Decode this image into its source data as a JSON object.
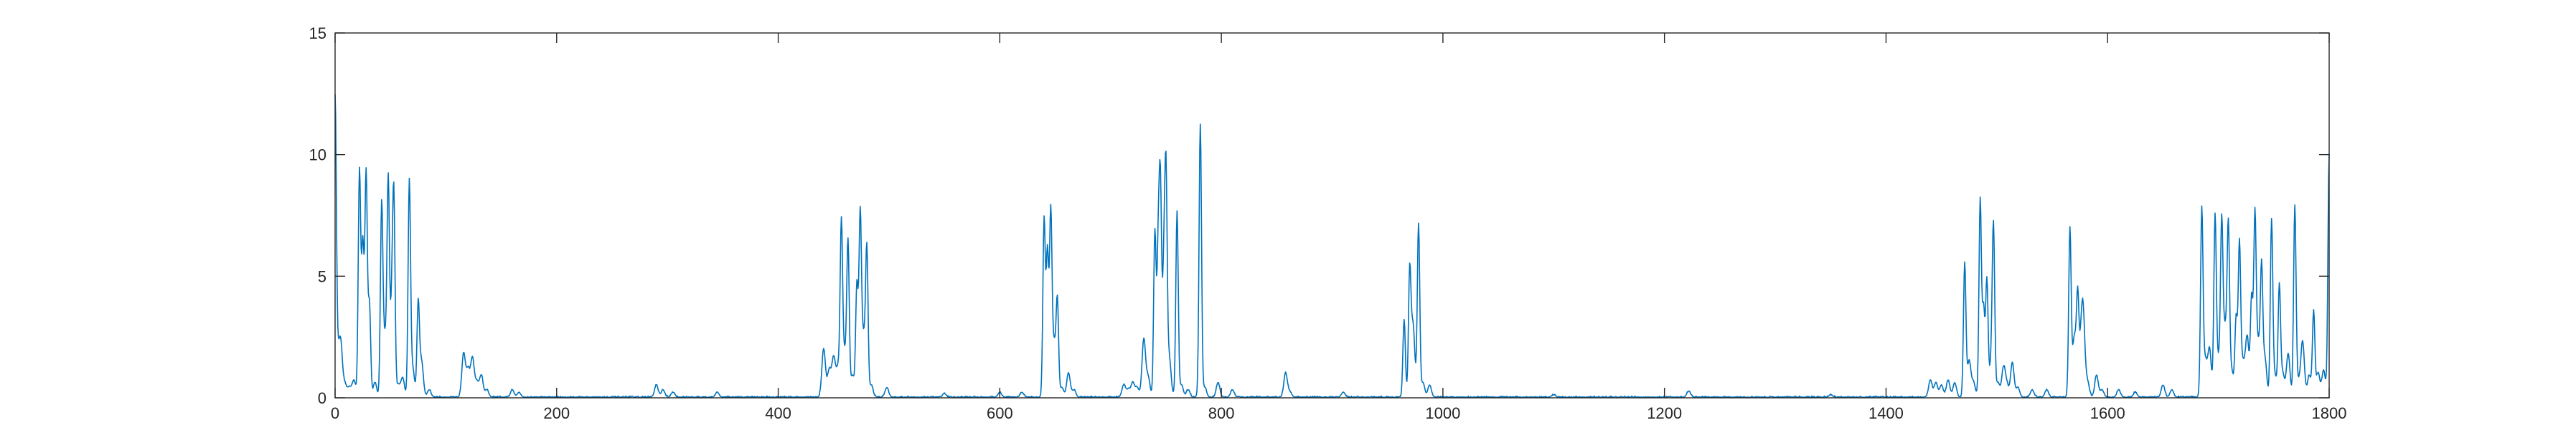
{
  "chart_data": {
    "type": "line",
    "title": "",
    "xlabel": "",
    "ylabel": "",
    "xlim": [
      0,
      1800
    ],
    "ylim": [
      0,
      15
    ],
    "grid": false,
    "box": true,
    "x_ticks": [
      0,
      200,
      400,
      600,
      800,
      1000,
      1200,
      1400,
      1600,
      1800
    ],
    "x_tick_labels": [
      "0",
      "200",
      "400",
      "600",
      "800",
      "1000",
      "1200",
      "1400",
      "1600",
      "1800"
    ],
    "y_ticks": [
      0,
      5,
      10,
      15
    ],
    "y_tick_labels": [
      "0",
      "5",
      "10",
      "15"
    ],
    "colors": {
      "series": "#0072BD",
      "axes": "#262626",
      "background": "#ffffff"
    },
    "series": [
      {
        "peaks": [
          [
            0,
            11.8
          ],
          [
            2,
            1.4
          ],
          [
            5,
            2.2
          ],
          [
            9,
            0.5
          ],
          [
            13,
            0.4
          ],
          [
            17,
            0.7
          ],
          [
            22,
            9.3
          ],
          [
            25,
            6.2
          ],
          [
            28,
            9.2
          ],
          [
            31,
            3.8
          ],
          [
            36,
            0.6
          ],
          [
            42,
            7.7
          ],
          [
            45,
            2.4
          ],
          [
            48,
            8.7
          ],
          [
            51,
            3.2
          ],
          [
            53,
            8.2
          ],
          [
            57,
            0.5
          ],
          [
            61,
            0.8
          ],
          [
            67,
            8.8
          ],
          [
            70,
            1.2
          ],
          [
            75,
            3.8
          ],
          [
            78,
            1.5
          ],
          [
            85,
            0.3
          ],
          [
            116,
            1.8
          ],
          [
            120,
            1.1
          ],
          [
            124,
            1.6
          ],
          [
            128,
            0.6
          ],
          [
            132,
            0.9
          ],
          [
            137,
            0.3
          ],
          [
            160,
            0.3
          ],
          [
            166,
            0.2
          ],
          [
            290,
            0.5
          ],
          [
            296,
            0.3
          ],
          [
            305,
            0.2
          ],
          [
            345,
            0.2
          ],
          [
            441,
            2.0
          ],
          [
            446,
            1.1
          ],
          [
            450,
            1.6
          ],
          [
            454,
            1.2
          ],
          [
            457,
            6.9
          ],
          [
            460,
            1.8
          ],
          [
            463,
            6.2
          ],
          [
            467,
            0.9
          ],
          [
            471,
            4.6
          ],
          [
            474,
            7.3
          ],
          [
            477,
            2.5
          ],
          [
            480,
            5.9
          ],
          [
            484,
            0.5
          ],
          [
            498,
            0.4
          ],
          [
            550,
            0.15
          ],
          [
            600,
            0.2
          ],
          [
            620,
            0.2
          ],
          [
            640,
            7.3
          ],
          [
            643,
            5.9
          ],
          [
            646,
            7.4
          ],
          [
            649,
            2.2
          ],
          [
            652,
            3.8
          ],
          [
            656,
            0.4
          ],
          [
            662,
            1.0
          ],
          [
            667,
            0.3
          ],
          [
            712,
            0.5
          ],
          [
            716,
            0.3
          ],
          [
            720,
            0.6
          ],
          [
            724,
            0.4
          ],
          [
            730,
            2.4
          ],
          [
            734,
            0.8
          ],
          [
            740,
            6.8
          ],
          [
            743,
            5.7
          ],
          [
            745,
            8.3
          ],
          [
            748,
            4.7
          ],
          [
            750,
            8.9
          ],
          [
            753,
            1.6
          ],
          [
            760,
            7.6
          ],
          [
            764,
            0.5
          ],
          [
            770,
            0.3
          ],
          [
            781,
            11.2
          ],
          [
            785,
            0.4
          ],
          [
            797,
            0.6
          ],
          [
            810,
            0.3
          ],
          [
            858,
            1.0
          ],
          [
            862,
            0.2
          ],
          [
            910,
            0.2
          ],
          [
            965,
            3.2
          ],
          [
            970,
            5.0
          ],
          [
            973,
            3.0
          ],
          [
            978,
            7.1
          ],
          [
            982,
            0.6
          ],
          [
            988,
            0.5
          ],
          [
            1100,
            0.1
          ],
          [
            1222,
            0.25
          ],
          [
            1350,
            0.1
          ],
          [
            1440,
            0.7
          ],
          [
            1445,
            0.6
          ],
          [
            1450,
            0.5
          ],
          [
            1456,
            0.7
          ],
          [
            1462,
            0.6
          ],
          [
            1471,
            5.5
          ],
          [
            1475,
            1.5
          ],
          [
            1479,
            0.6
          ],
          [
            1485,
            8.1
          ],
          [
            1488,
            3.6
          ],
          [
            1491,
            4.8
          ],
          [
            1495,
            1.4
          ],
          [
            1497,
            6.6
          ],
          [
            1501,
            0.6
          ],
          [
            1506,
            1.2
          ],
          [
            1509,
            0.5
          ],
          [
            1514,
            1.4
          ],
          [
            1519,
            0.4
          ],
          [
            1532,
            0.3
          ],
          [
            1545,
            0.3
          ],
          [
            1566,
            6.9
          ],
          [
            1570,
            2.5
          ],
          [
            1573,
            3.8
          ],
          [
            1576,
            1.8
          ],
          [
            1578,
            3.0
          ],
          [
            1582,
            0.6
          ],
          [
            1590,
            0.9
          ],
          [
            1595,
            0.3
          ],
          [
            1610,
            0.3
          ],
          [
            1625,
            0.2
          ],
          [
            1650,
            0.5
          ],
          [
            1658,
            0.3
          ],
          [
            1685,
            7.6
          ],
          [
            1688,
            1.5
          ],
          [
            1692,
            2.0
          ],
          [
            1697,
            7.3
          ],
          [
            1700,
            1.5
          ],
          [
            1703,
            6.8
          ],
          [
            1706,
            2.8
          ],
          [
            1709,
            6.7
          ],
          [
            1712,
            1.1
          ],
          [
            1716,
            3.2
          ],
          [
            1719,
            6.2
          ],
          [
            1722,
            1.4
          ],
          [
            1726,
            2.5
          ],
          [
            1730,
            4.0
          ],
          [
            1733,
            7.3
          ],
          [
            1736,
            2.2
          ],
          [
            1739,
            5.0
          ],
          [
            1742,
            1.6
          ],
          [
            1748,
            7.2
          ],
          [
            1751,
            0.9
          ],
          [
            1755,
            4.5
          ],
          [
            1758,
            1.0
          ],
          [
            1763,
            1.8
          ],
          [
            1769,
            7.8
          ],
          [
            1772,
            0.6
          ],
          [
            1776,
            2.3
          ],
          [
            1782,
            0.9
          ],
          [
            1786,
            3.5
          ],
          [
            1790,
            1.0
          ],
          [
            1795,
            1.1
          ],
          [
            1800,
            10.0
          ]
        ]
      }
    ]
  }
}
